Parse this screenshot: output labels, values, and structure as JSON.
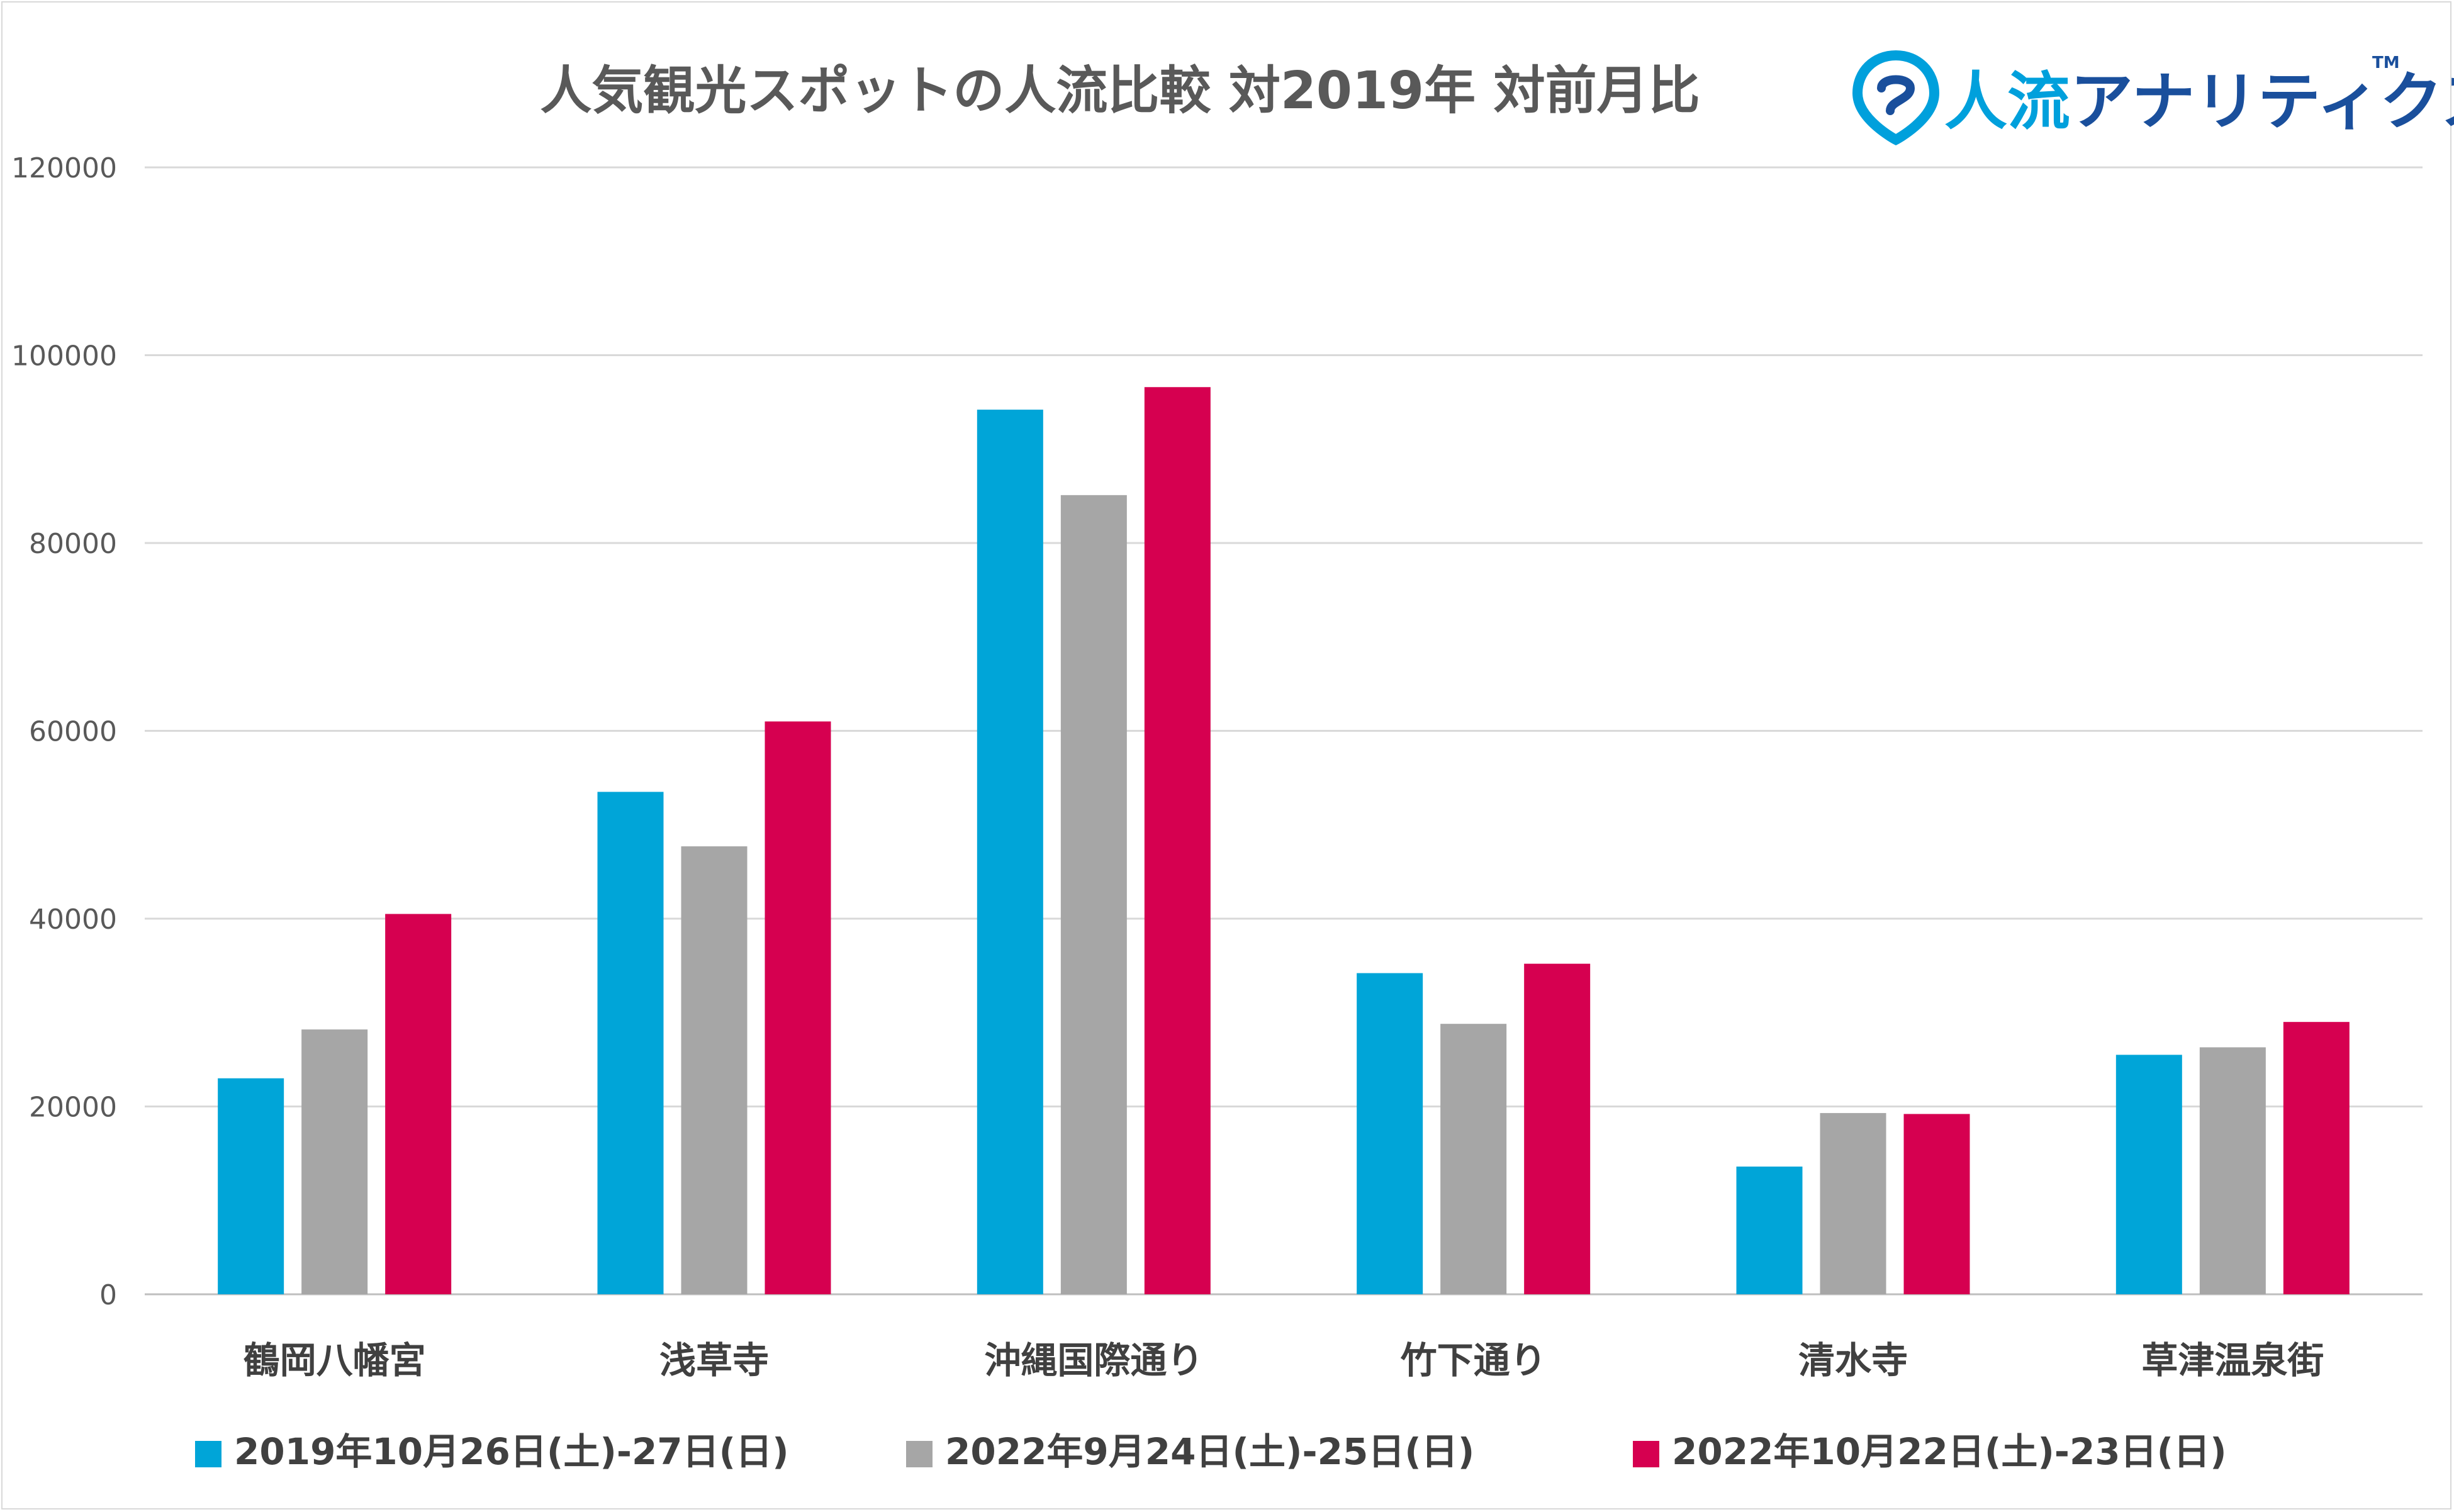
{
  "logo": {
    "brand_primary": "人流",
    "brand_secondary": "アナリティクス",
    "trademark": "TM",
    "color_primary": "#00a0dc",
    "color_secondary": "#1a4f9c"
  },
  "chart_data": {
    "type": "bar",
    "title": "人気観光スポットの人流比較 対2019年 対前月比",
    "xlabel": "",
    "ylabel": "",
    "ylim": [
      0,
      120000
    ],
    "yticks": [
      0,
      20000,
      40000,
      60000,
      80000,
      100000,
      120000
    ],
    "grid": true,
    "legend_position": "bottom",
    "categories": [
      "鶴岡八幡宮",
      "浅草寺",
      "沖縄国際通り",
      "竹下通り",
      "清水寺",
      "草津温泉街"
    ],
    "series": [
      {
        "name": "2019年10月26日(土)-27日(日)",
        "color": "#00a5d8",
        "values": [
          23000,
          53500,
          94200,
          34200,
          13600,
          25500
        ]
      },
      {
        "name": "2022年9月24日(土)-25日(日)",
        "color": "#a6a6a6",
        "values": [
          28200,
          47700,
          85100,
          28800,
          19300,
          26300
        ]
      },
      {
        "name": "2022年10月22日(土)-23日(日)",
        "color": "#d60050",
        "values": [
          40500,
          61000,
          96600,
          35200,
          19200,
          29000
        ]
      }
    ]
  }
}
